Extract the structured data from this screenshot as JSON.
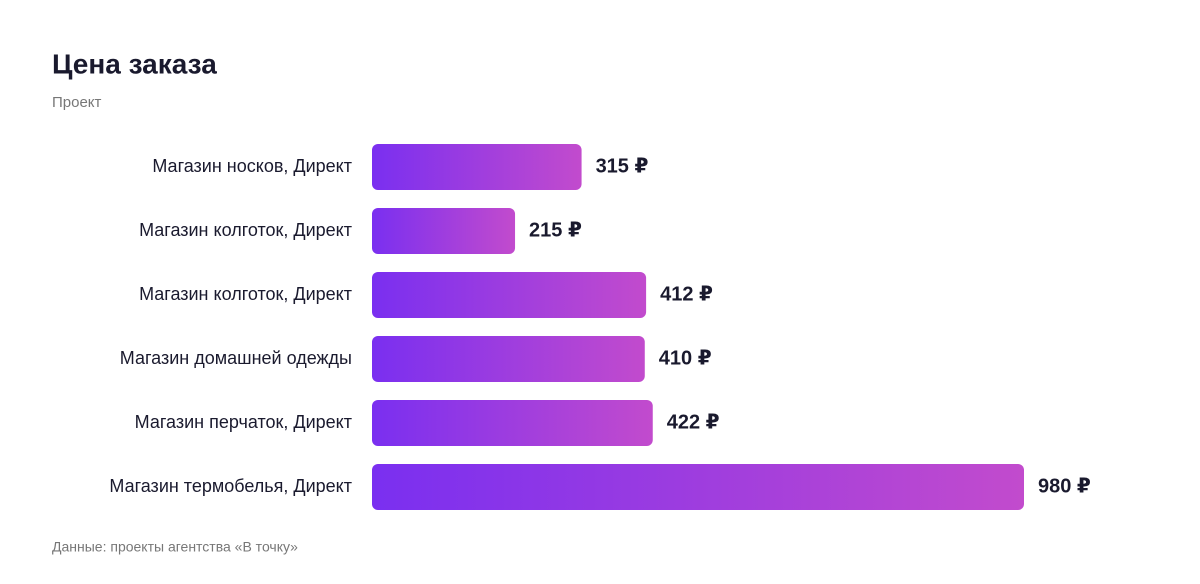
{
  "chart_data": {
    "type": "bar",
    "orientation": "horizontal",
    "title": "Цена заказа",
    "subtitle": "Проект",
    "categories": [
      "Магазин носков, Директ",
      "Магазин колготок, Директ",
      "Магазин колготок, Директ",
      "Магазин домашней одежды",
      "Магазин перчаток, Директ",
      "Магазин термобелья, Директ"
    ],
    "values": [
      315,
      215,
      412,
      410,
      422,
      980
    ],
    "value_labels": [
      "315 ₽",
      "215 ₽",
      "412 ₽",
      "410 ₽",
      "422 ₽",
      "980 ₽"
    ],
    "gradient": [
      "#7a2ff0",
      "#c24bcd"
    ],
    "source": "Данные: проекты агентства «В точку»"
  }
}
